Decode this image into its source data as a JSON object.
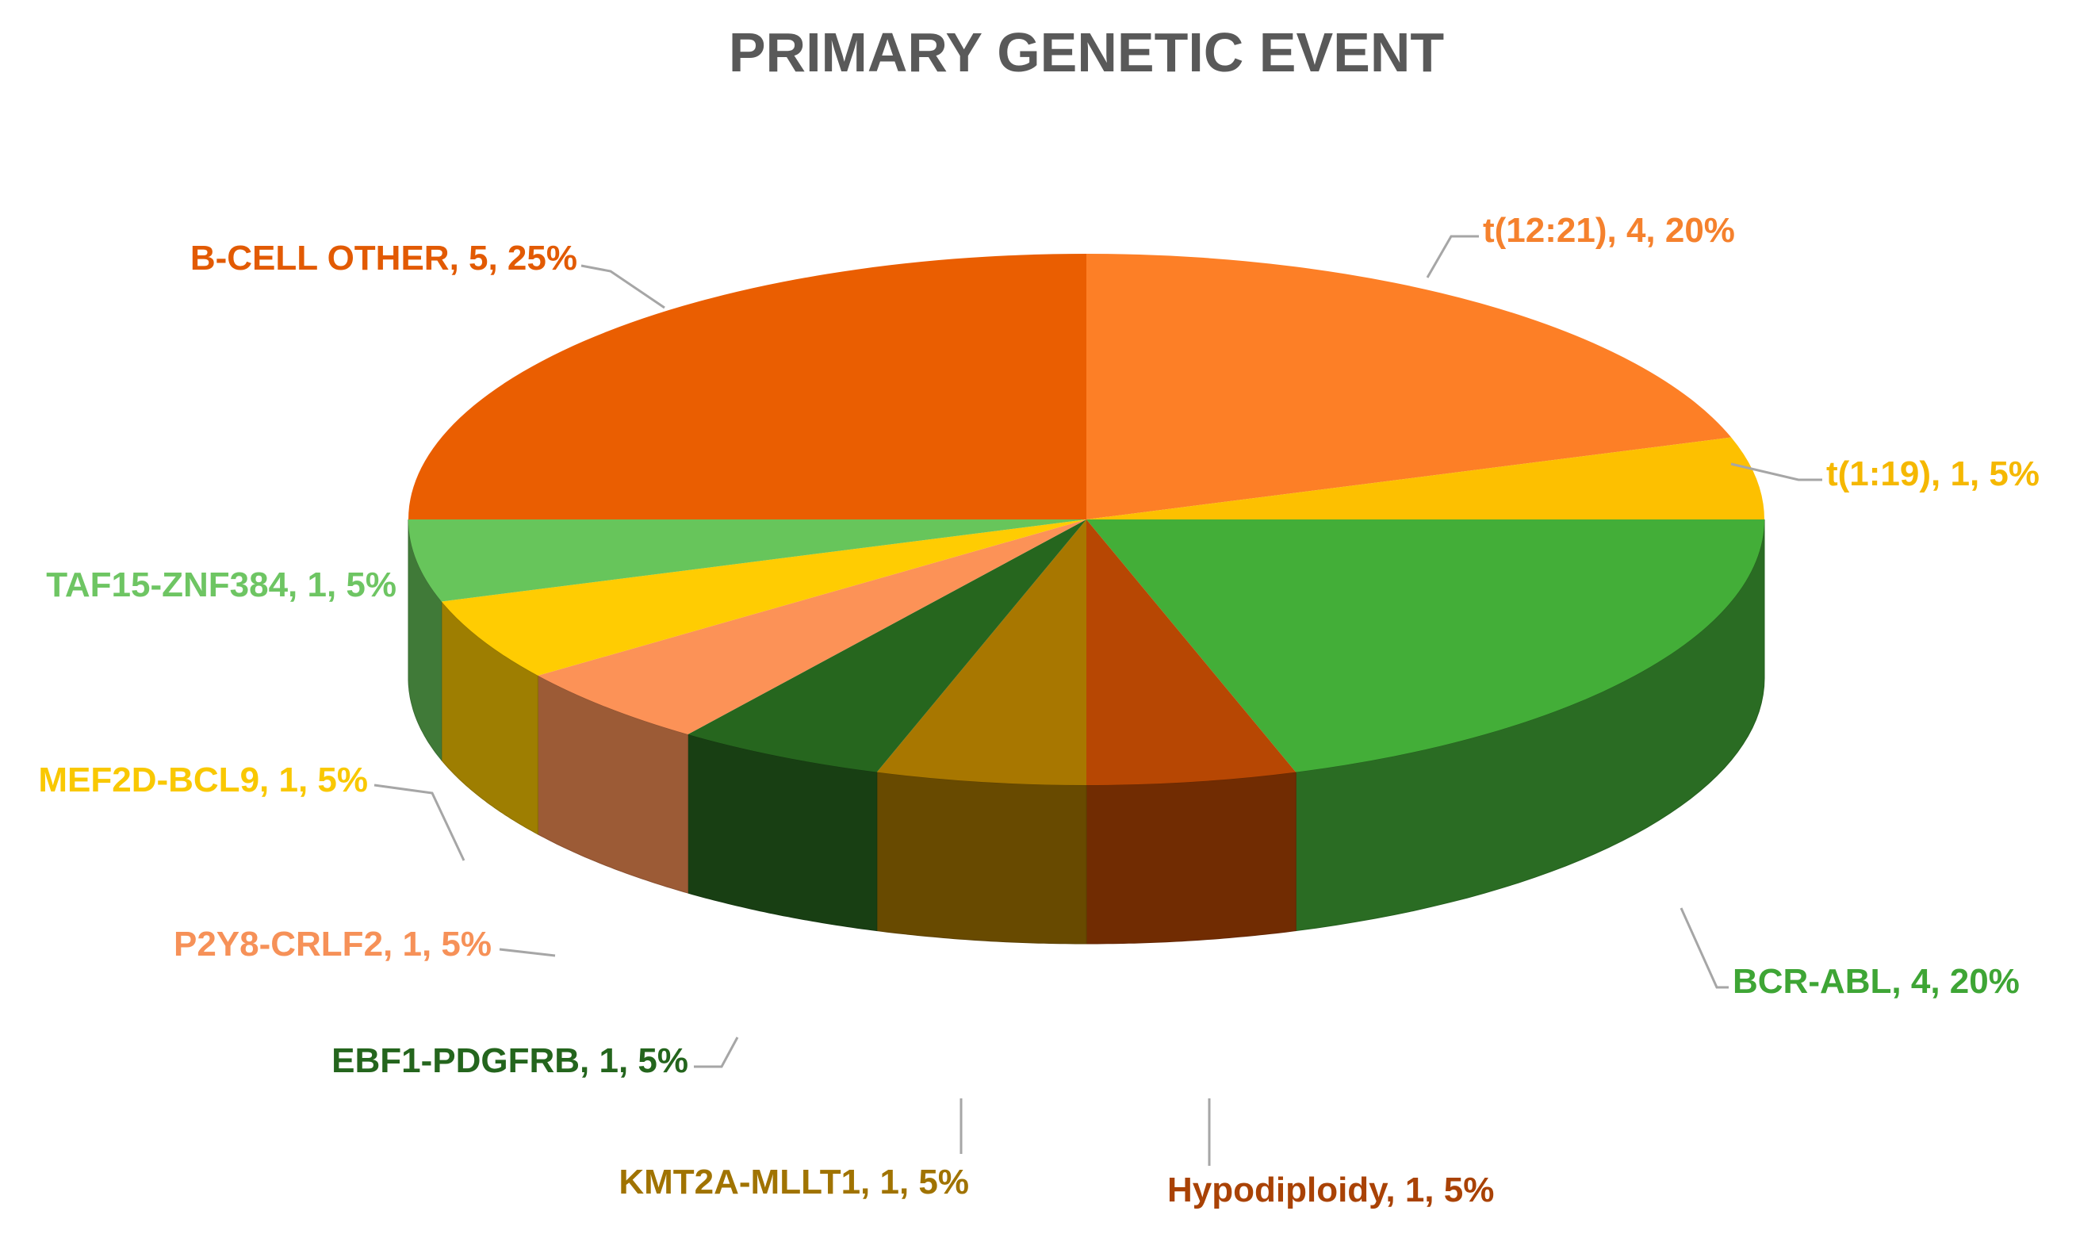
{
  "chart_data": {
    "type": "pie",
    "style": "3d",
    "title": "PRIMARY GENETIC EVENT",
    "slices": [
      {
        "name": "t(12:21)",
        "value": 4,
        "percent": "20%",
        "label": "t(12:21), 4, 20%",
        "color": "#fd7f26",
        "label_color": "#f5812d"
      },
      {
        "name": "t(1:19)",
        "value": 1,
        "percent": "5%",
        "label": "t(1:19), 1, 5%",
        "color": "#fdc000",
        "label_color": "#f5b800"
      },
      {
        "name": "BCR-ABL",
        "value": 4,
        "percent": "20%",
        "label": "BCR-ABL, 4, 20%",
        "color": "#43ae38",
        "label_color": "#3ea535"
      },
      {
        "name": "Hypodiploidy",
        "value": 1,
        "percent": "5%",
        "label": "Hypodiploidy, 1, 5%",
        "color": "#b74703",
        "label_color": "#a94205"
      },
      {
        "name": "KMT2A-MLLT1",
        "value": 1,
        "percent": "5%",
        "label": "KMT2A-MLLT1, 1, 5%",
        "color": "#a87700",
        "label_color": "#a07300"
      },
      {
        "name": "EBF1-PDGFRB",
        "value": 1,
        "percent": "5%",
        "label": "EBF1-PDGFRB, 1, 5%",
        "color": "#26661e",
        "label_color": "#24651d"
      },
      {
        "name": "P2Y8-CRLF2",
        "value": 1,
        "percent": "5%",
        "label": "P2Y8-CRLF2, 1, 5%",
        "color": "#fc9257",
        "label_color": "#f69158"
      },
      {
        "name": "MEF2D-BCL9",
        "value": 1,
        "percent": "5%",
        "label": "MEF2D-BCL9, 1, 5%",
        "color": "#ffcc02",
        "label_color": "#f9c802"
      },
      {
        "name": "TAF15-ZNF384",
        "value": 1,
        "percent": "5%",
        "label": "TAF15-ZNF384, 1, 5%",
        "color": "#67c55b",
        "label_color": "#6ec563"
      },
      {
        "name": "B-CELL OTHER",
        "value": 5,
        "percent": "25%",
        "label": "B-CELL OTHER, 5, 25%",
        "color": "#ea5e01",
        "label_color": "#e25a03"
      }
    ]
  }
}
